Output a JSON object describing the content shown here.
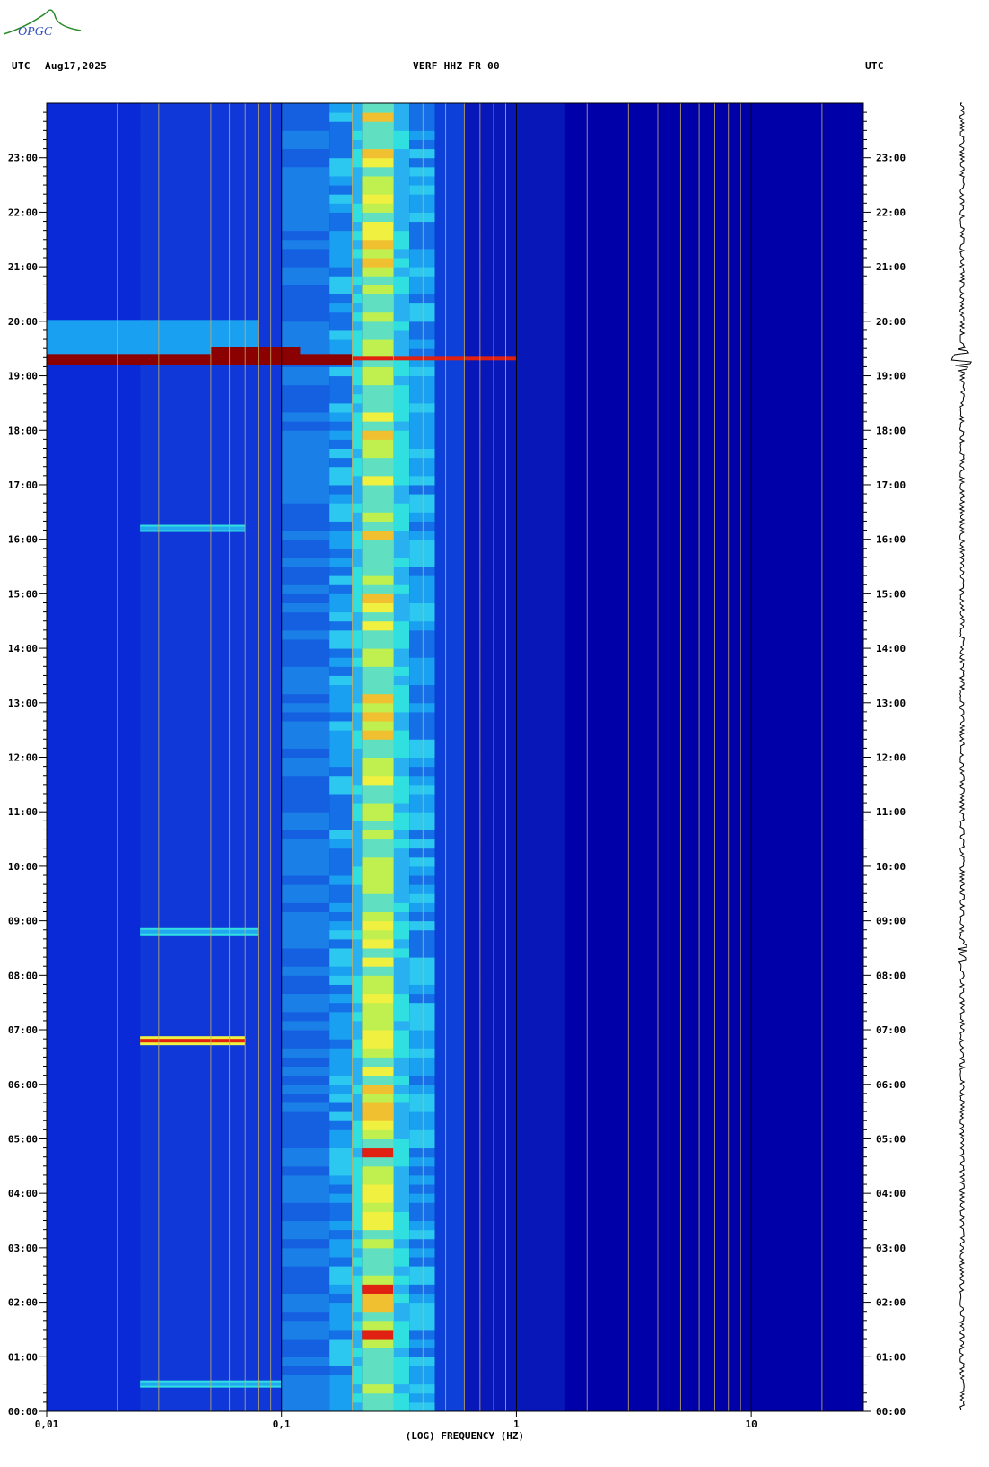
{
  "logo": {
    "text": "OPGC"
  },
  "header": {
    "left_tz": "UTC",
    "date": "Aug17,2025",
    "station": "VERF HHZ FR 00",
    "right_tz": "UTC"
  },
  "colors": {
    "background": "#0000a8",
    "low": "#0a2ad8",
    "mid": "#21a8f0",
    "cyan": "#30e0e0",
    "yellow": "#f0f040",
    "red": "#e02010",
    "dark_red": "#8b0000",
    "grid": "#c8b060",
    "grid_decade": "#000000"
  },
  "chart_data": {
    "type": "heatmap",
    "title": "VERF HHZ FR 00",
    "xlabel": "(LOG) FREQUENCY (HZ)",
    "ylabel": "UTC",
    "x_scale": "log",
    "xlim": [
      0.01,
      30
    ],
    "ylim_hours": [
      0,
      24
    ],
    "x_ticks": [
      "0,01",
      "0,1",
      "1",
      "10"
    ],
    "x_tick_values": [
      0.01,
      0.1,
      1,
      10
    ],
    "y_ticks": [
      "00:00",
      "01:00",
      "02:00",
      "03:00",
      "04:00",
      "05:00",
      "06:00",
      "07:00",
      "08:00",
      "09:00",
      "10:00",
      "11:00",
      "12:00",
      "13:00",
      "14:00",
      "15:00",
      "16:00",
      "17:00",
      "18:00",
      "19:00",
      "20:00",
      "21:00",
      "22:00",
      "23:00"
    ],
    "microseism_band_hz": [
      0.2,
      0.35
    ],
    "events": [
      {
        "label": "earthquake",
        "time_hours": 19.3,
        "intensity": "high",
        "max_freq_hz": 1.0
      },
      {
        "label": "event",
        "time_hours": 6.8,
        "intensity": "medium",
        "max_freq_hz": 0.07
      },
      {
        "label": "event",
        "time_hours": 16.2,
        "intensity": "low",
        "max_freq_hz": 0.07
      },
      {
        "label": "event",
        "time_hours": 8.8,
        "intensity": "low",
        "max_freq_hz": 0.08
      },
      {
        "label": "event",
        "time_hours": 0.5,
        "intensity": "low",
        "max_freq_hz": 0.1
      }
    ]
  }
}
